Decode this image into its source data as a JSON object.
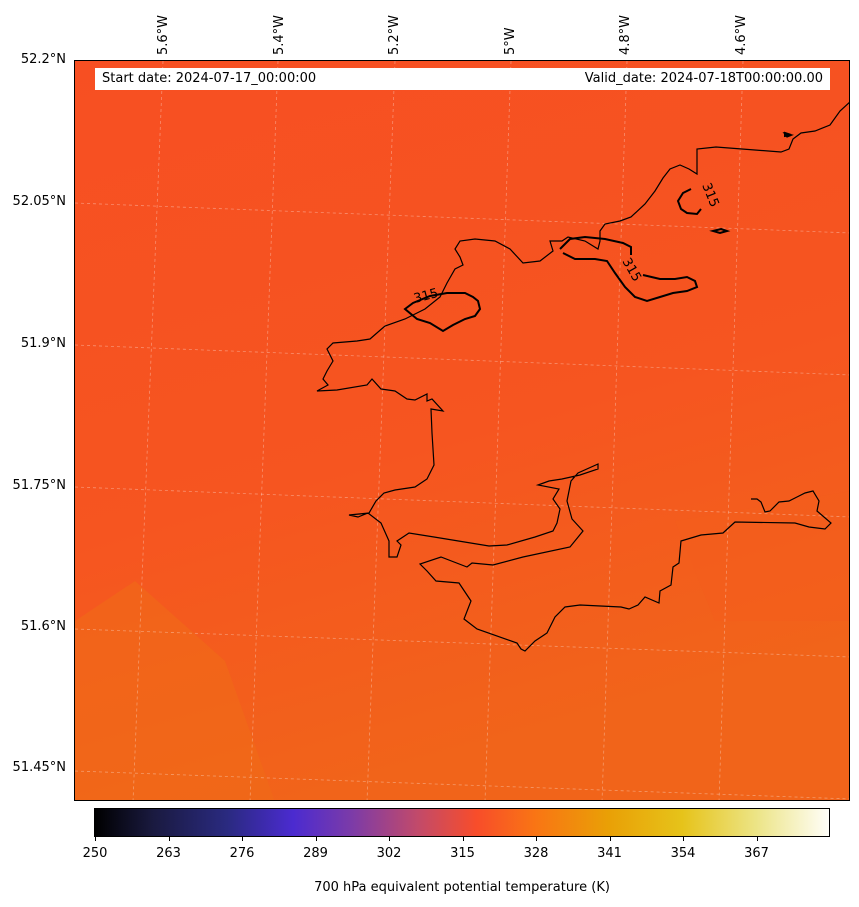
{
  "map": {
    "start_date": "Start date: 2024-07-17_00:00:00",
    "valid_date": "Valid_date: 2024-07-18T00:00:00.00",
    "contour_labels": [
      "315",
      "315",
      "315"
    ]
  },
  "axes": {
    "lat_labels": [
      "52.2°N",
      "52.05°N",
      "51.9°N",
      "51.75°N",
      "51.6°N",
      "51.45°N"
    ],
    "lon_labels": [
      "5.6°W",
      "5.4°W",
      "5.2°W",
      "5°W",
      "4.8°W",
      "4.6°W"
    ]
  },
  "colorbar": {
    "ticks": [
      "250",
      "263",
      "276",
      "289",
      "302",
      "315",
      "328",
      "341",
      "354",
      "367"
    ],
    "label": "700 hPa equivalent potential temperature (K)"
  },
  "colors": {
    "field_main": "#f65520",
    "field_south": "#f06a18",
    "coastline": "#000000"
  }
}
